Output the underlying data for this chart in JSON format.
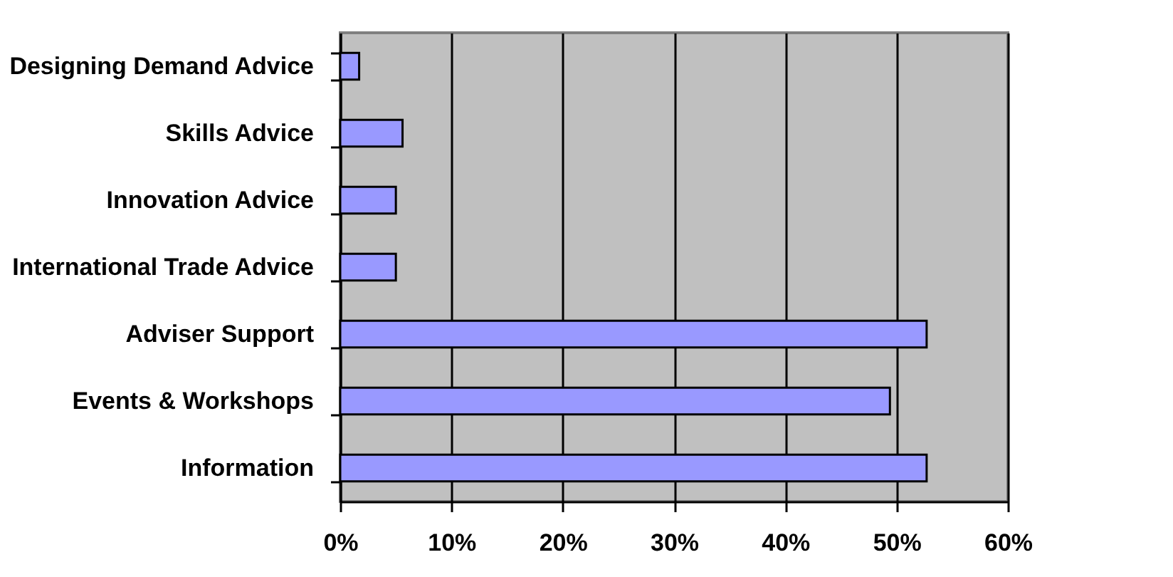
{
  "chart_data": {
    "type": "bar",
    "orientation": "horizontal",
    "categories": [
      "Designing Demand Advice",
      "Skills Advice",
      "Innovation Advice",
      "International Trade Advice",
      "Adviser Support",
      "Events & Workshops",
      "Information"
    ],
    "values": [
      1.7,
      5.6,
      5.0,
      5.0,
      52.7,
      49.4,
      52.7
    ],
    "color": "#9999ff",
    "xlim": [
      0,
      60
    ],
    "xticks": [
      {
        "value": 0,
        "label": "0%"
      },
      {
        "value": 10,
        "label": "10%"
      },
      {
        "value": 20,
        "label": "20%"
      },
      {
        "value": 30,
        "label": "30%"
      },
      {
        "value": 40,
        "label": "40%"
      },
      {
        "value": 50,
        "label": "50%"
      },
      {
        "value": 60,
        "label": "60%"
      }
    ],
    "grid": "x"
  }
}
